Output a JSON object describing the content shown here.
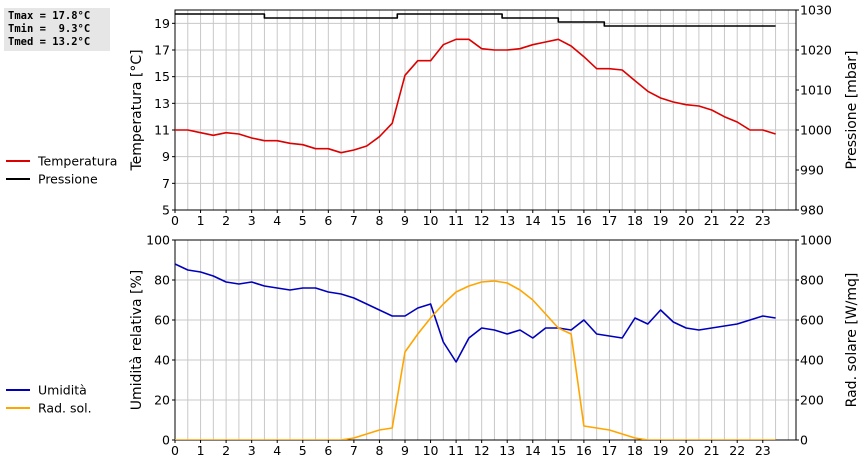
{
  "stats": {
    "tmax": "Tmax = 17.8°C",
    "tmin": "Tmin =  9.3°C",
    "tmed": "Tmed = 13.2°C"
  },
  "colors": {
    "temperature": "#dd0000",
    "pressure": "#000000",
    "humidity": "#0000bb",
    "radiation": "#ffa500",
    "grid": "#c8c8c8"
  },
  "chart_data": [
    {
      "type": "line",
      "x_ticks": [
        "0",
        "1",
        "2",
        "3",
        "4",
        "5",
        "6",
        "7",
        "8",
        "9",
        "10",
        "11",
        "12",
        "13",
        "14",
        "15",
        "16",
        "17",
        "18",
        "19",
        "20",
        "21",
        "22",
        "23"
      ],
      "xlim": [
        0,
        24.3
      ],
      "grid": true,
      "ylabel_left": "Temperatura [°C]",
      "ylabel_right": "Pressione [mbar]",
      "ylim_left": [
        5,
        20
      ],
      "ylim_right": [
        980,
        1030
      ],
      "yticks_left": [
        5,
        7,
        9,
        11,
        13,
        15,
        17,
        19
      ],
      "yticks_right": [
        980,
        990,
        1000,
        1010,
        1020,
        1030
      ],
      "legend_position": "left",
      "series": [
        {
          "name": "Temperatura",
          "axis": "left",
          "color": "#dd0000",
          "x": [
            0,
            0.5,
            1,
            1.5,
            2,
            2.5,
            3,
            3.5,
            4,
            4.5,
            5,
            5.5,
            6,
            6.5,
            7,
            7.5,
            8,
            8.5,
            9,
            9.5,
            10,
            10.5,
            11,
            11.5,
            12,
            12.5,
            13,
            13.5,
            14,
            14.5,
            15,
            15.5,
            16,
            16.5,
            17,
            17.5,
            18,
            18.5,
            19,
            19.5,
            20,
            20.5,
            21,
            21.5,
            22,
            22.5,
            23,
            23.5
          ],
          "y": [
            11,
            11,
            10.8,
            10.6,
            10.8,
            10.7,
            10.4,
            10.2,
            10.2,
            10,
            9.9,
            9.6,
            9.6,
            9.3,
            9.5,
            9.8,
            10.5,
            11.5,
            15.1,
            16.2,
            16.2,
            17.4,
            17.8,
            17.8,
            17.1,
            17,
            17,
            17.1,
            17.4,
            17.6,
            17.8,
            17.3,
            16.5,
            15.6,
            15.6,
            15.5,
            14.7,
            13.9,
            13.4,
            13.1,
            12.9,
            12.8,
            12.5,
            12,
            11.6,
            11,
            11,
            10.7
          ]
        },
        {
          "name": "Pressione",
          "axis": "right",
          "color": "#000000",
          "x": [
            0,
            3.5,
            3.5,
            8.7,
            8.7,
            12.8,
            12.8,
            15,
            15,
            16.8,
            16.8,
            23.5
          ],
          "y": [
            1029,
            1029,
            1028,
            1028,
            1029,
            1029,
            1028,
            1028,
            1027,
            1027,
            1026,
            1026
          ]
        }
      ]
    },
    {
      "type": "line",
      "x_ticks": [
        "0",
        "1",
        "2",
        "3",
        "4",
        "5",
        "6",
        "7",
        "8",
        "9",
        "10",
        "11",
        "12",
        "13",
        "14",
        "15",
        "16",
        "17",
        "18",
        "19",
        "20",
        "21",
        "22",
        "23"
      ],
      "xlim": [
        0,
        24.3
      ],
      "grid": true,
      "ylabel_left": "Umidità relativa [%]",
      "ylabel_right": "Rad. solare [W/mq]",
      "ylim_left": [
        0,
        100
      ],
      "ylim_right": [
        0,
        1000
      ],
      "yticks_left": [
        0,
        20,
        40,
        60,
        80,
        100
      ],
      "yticks_right": [
        0,
        200,
        400,
        600,
        800,
        1000
      ],
      "legend_position": "left",
      "series": [
        {
          "name": "Umidità",
          "axis": "left",
          "color": "#0000bb",
          "x": [
            0,
            0.5,
            1,
            1.5,
            2,
            2.5,
            3,
            3.5,
            4,
            4.5,
            5,
            5.5,
            6,
            6.5,
            7,
            7.5,
            8,
            8.5,
            9,
            9.5,
            10,
            10.5,
            11,
            11.5,
            12,
            12.5,
            13,
            13.5,
            14,
            14.5,
            15,
            15.5,
            16,
            16.5,
            17,
            17.5,
            18,
            18.5,
            19,
            19.5,
            20,
            20.5,
            21,
            21.5,
            22,
            22.5,
            23,
            23.5
          ],
          "y": [
            88,
            85,
            84,
            82,
            79,
            78,
            79,
            77,
            76,
            75,
            76,
            76,
            74,
            73,
            71,
            68,
            65,
            62,
            62,
            66,
            68,
            49,
            39,
            51,
            56,
            55,
            53,
            55,
            51,
            56,
            56,
            55,
            60,
            53,
            52,
            51,
            61,
            58,
            65,
            59,
            56,
            55,
            56,
            57,
            58,
            60,
            62,
            61
          ]
        },
        {
          "name": "Rad. sol.",
          "axis": "right",
          "color": "#ffa500",
          "x": [
            0,
            6.5,
            7,
            7.5,
            8,
            8.5,
            9,
            9.5,
            10,
            10.5,
            11,
            11.5,
            12,
            12.5,
            13,
            13.5,
            14,
            14.5,
            15,
            15.5,
            16,
            16.5,
            17,
            17.5,
            18,
            18.5,
            23.5
          ],
          "y": [
            0,
            0,
            10,
            30,
            50,
            60,
            440,
            530,
            610,
            680,
            740,
            770,
            790,
            795,
            785,
            750,
            700,
            630,
            560,
            530,
            70,
            60,
            50,
            30,
            10,
            0,
            0
          ]
        }
      ]
    }
  ]
}
